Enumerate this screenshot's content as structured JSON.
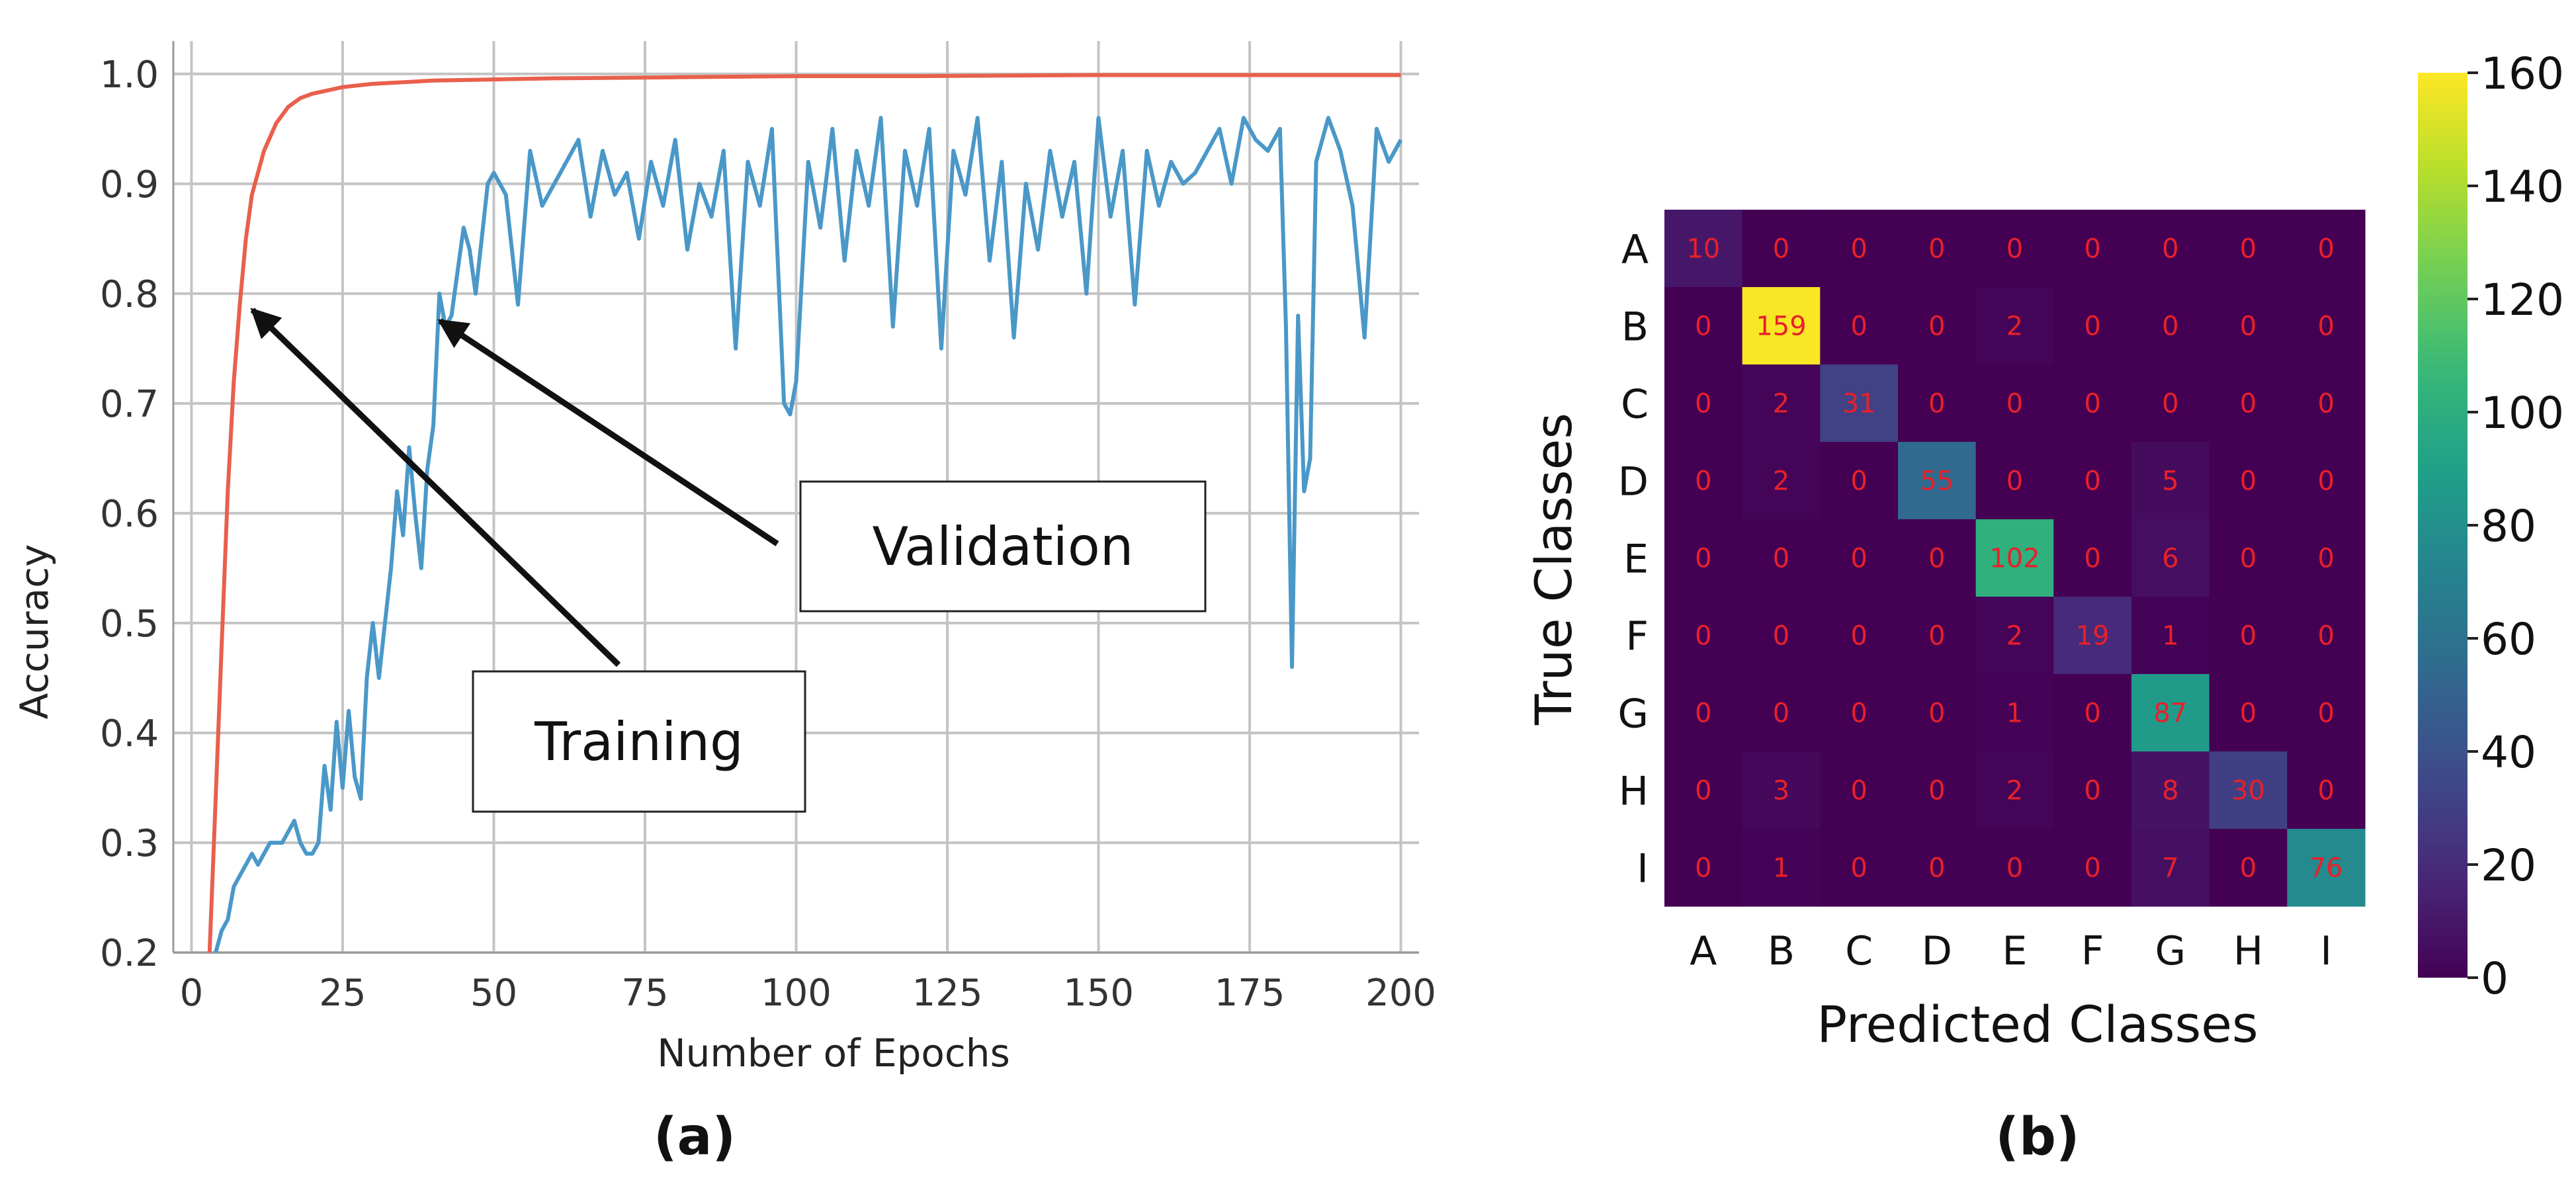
{
  "panels": {
    "a": "(a)",
    "b": "(b)"
  },
  "chart_data": [
    {
      "type": "line",
      "panel": "(a)",
      "title": "",
      "xlabel": "Number of Epochs",
      "ylabel": "Accuracy",
      "xlim": [
        -3,
        203
      ],
      "ylim": [
        0.2,
        1.03
      ],
      "xticks": [
        0,
        25,
        50,
        75,
        100,
        125,
        150,
        175,
        200
      ],
      "yticks": [
        0.2,
        0.3,
        0.4,
        0.5,
        0.6,
        0.7,
        0.8,
        0.9,
        1.0
      ],
      "ytick_labels": [
        "0.2",
        "0.3",
        "0.4",
        "0.5",
        "0.6",
        "0.7",
        "0.8",
        "0.9",
        "1.0"
      ],
      "grid": true,
      "series": [
        {
          "name": "Training",
          "color": "#e8604c",
          "x": [
            3,
            4,
            5,
            6,
            7,
            8,
            9,
            10,
            12,
            14,
            16,
            18,
            20,
            25,
            30,
            40,
            50,
            60,
            80,
            100,
            120,
            150,
            175,
            200
          ],
          "values": [
            0.2,
            0.34,
            0.48,
            0.62,
            0.72,
            0.79,
            0.85,
            0.89,
            0.93,
            0.955,
            0.97,
            0.978,
            0.982,
            0.988,
            0.991,
            0.994,
            0.995,
            0.996,
            0.997,
            0.998,
            0.998,
            0.999,
            0.999,
            0.999
          ]
        },
        {
          "name": "Validation",
          "color": "#4a98c8",
          "x": [
            4,
            5,
            6,
            7,
            8,
            9,
            10,
            11,
            12,
            13,
            14,
            15,
            16,
            17,
            18,
            19,
            20,
            21,
            22,
            23,
            24,
            25,
            26,
            27,
            28,
            29,
            30,
            31,
            32,
            33,
            34,
            35,
            36,
            37,
            38,
            39,
            40,
            41,
            42,
            43,
            44,
            45,
            46,
            47,
            48,
            49,
            50,
            52,
            54,
            56,
            58,
            60,
            62,
            64,
            66,
            68,
            70,
            72,
            74,
            76,
            78,
            80,
            82,
            84,
            86,
            88,
            90,
            92,
            94,
            96,
            98,
            99,
            100,
            102,
            104,
            106,
            108,
            110,
            112,
            114,
            116,
            118,
            120,
            122,
            124,
            126,
            128,
            130,
            132,
            134,
            136,
            138,
            140,
            142,
            144,
            146,
            148,
            150,
            152,
            154,
            156,
            158,
            160,
            162,
            164,
            166,
            168,
            170,
            172,
            174,
            176,
            178,
            180,
            181,
            182,
            183,
            184,
            185,
            186,
            188,
            190,
            192,
            194,
            196,
            198,
            200
          ],
          "values": [
            0.2,
            0.22,
            0.23,
            0.26,
            0.27,
            0.28,
            0.29,
            0.28,
            0.29,
            0.3,
            0.3,
            0.3,
            0.31,
            0.32,
            0.3,
            0.29,
            0.29,
            0.3,
            0.37,
            0.33,
            0.41,
            0.35,
            0.42,
            0.36,
            0.34,
            0.45,
            0.5,
            0.45,
            0.5,
            0.55,
            0.62,
            0.58,
            0.66,
            0.6,
            0.55,
            0.64,
            0.68,
            0.8,
            0.77,
            0.78,
            0.82,
            0.86,
            0.84,
            0.8,
            0.85,
            0.9,
            0.91,
            0.89,
            0.79,
            0.93,
            0.88,
            0.9,
            0.92,
            0.94,
            0.87,
            0.93,
            0.89,
            0.91,
            0.85,
            0.92,
            0.88,
            0.94,
            0.84,
            0.9,
            0.87,
            0.93,
            0.75,
            0.92,
            0.88,
            0.95,
            0.7,
            0.69,
            0.72,
            0.92,
            0.86,
            0.95,
            0.83,
            0.93,
            0.88,
            0.96,
            0.77,
            0.93,
            0.88,
            0.95,
            0.75,
            0.93,
            0.89,
            0.96,
            0.83,
            0.92,
            0.76,
            0.9,
            0.84,
            0.93,
            0.87,
            0.92,
            0.8,
            0.96,
            0.87,
            0.93,
            0.79,
            0.93,
            0.88,
            0.92,
            0.9,
            0.91,
            0.93,
            0.95,
            0.9,
            0.96,
            0.94,
            0.93,
            0.95,
            0.77,
            0.46,
            0.78,
            0.62,
            0.65,
            0.92,
            0.96,
            0.93,
            0.88,
            0.76,
            0.95,
            0.92,
            0.94
          ]
        }
      ],
      "annotations": [
        {
          "text": "Training",
          "points_to": [
            9,
            0.79
          ]
        },
        {
          "text": "Validation",
          "points_to": [
            40,
            0.78
          ]
        }
      ]
    },
    {
      "type": "heatmap",
      "panel": "(b)",
      "title": "",
      "xlabel": "Predicted Classes",
      "ylabel": "True Classes",
      "classes": [
        "A",
        "B",
        "C",
        "D",
        "E",
        "F",
        "G",
        "H",
        "I"
      ],
      "matrix": [
        [
          10,
          0,
          0,
          0,
          0,
          0,
          0,
          0,
          0
        ],
        [
          0,
          159,
          0,
          0,
          2,
          0,
          0,
          0,
          0
        ],
        [
          0,
          2,
          31,
          0,
          0,
          0,
          0,
          0,
          0
        ],
        [
          0,
          2,
          0,
          55,
          0,
          0,
          5,
          0,
          0
        ],
        [
          0,
          0,
          0,
          0,
          102,
          0,
          6,
          0,
          0
        ],
        [
          0,
          0,
          0,
          0,
          2,
          19,
          1,
          0,
          0
        ],
        [
          0,
          0,
          0,
          0,
          1,
          0,
          87,
          0,
          0
        ],
        [
          0,
          3,
          0,
          0,
          2,
          0,
          8,
          30,
          0
        ],
        [
          0,
          1,
          0,
          0,
          0,
          0,
          7,
          0,
          76
        ]
      ],
      "colorbar": {
        "colormap": "viridis",
        "vmin": 0,
        "vmax": 160,
        "ticks": [
          0,
          20,
          40,
          60,
          80,
          100,
          120,
          140,
          160
        ],
        "tick_labels": [
          "0",
          "20",
          "40",
          "60",
          "80",
          "100",
          "120",
          "140",
          "160"
        ]
      }
    }
  ]
}
